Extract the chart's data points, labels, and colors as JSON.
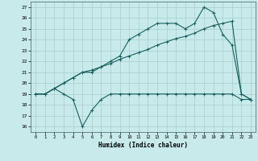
{
  "xlabel": "Humidex (Indice chaleur)",
  "ylabel": "",
  "bg_color": "#c8eaea",
  "grid_color": "#a8cccc",
  "line_color": "#1a6060",
  "xlim": [
    -0.5,
    23.5
  ],
  "ylim": [
    15.5,
    27.5
  ],
  "xticks": [
    0,
    1,
    2,
    3,
    4,
    5,
    6,
    7,
    8,
    9,
    10,
    11,
    12,
    13,
    14,
    15,
    16,
    17,
    18,
    19,
    20,
    21,
    22,
    23
  ],
  "yticks": [
    16,
    17,
    18,
    19,
    20,
    21,
    22,
    23,
    24,
    25,
    26,
    27
  ],
  "line1_x": [
    0,
    1,
    2,
    3,
    4,
    5,
    6,
    7,
    8,
    9,
    10,
    11,
    12,
    13,
    14,
    15,
    16,
    17,
    18,
    19,
    20,
    21,
    22,
    23
  ],
  "line1_y": [
    19,
    19,
    19.5,
    19,
    18.5,
    16,
    17.5,
    18.5,
    19,
    19,
    19,
    19,
    19,
    19,
    19,
    19,
    19,
    19,
    19,
    19,
    19,
    19,
    18.5,
    18.5
  ],
  "line2_x": [
    0,
    1,
    2,
    3,
    4,
    5,
    6,
    7,
    8,
    9,
    10,
    11,
    12,
    13,
    14,
    15,
    16,
    17,
    18,
    19,
    20,
    21,
    22,
    23
  ],
  "line2_y": [
    19,
    19,
    19.5,
    20,
    20.5,
    21,
    21,
    21.5,
    22,
    22.5,
    24,
    24.5,
    25,
    25.5,
    25.5,
    25.5,
    25,
    25.5,
    27,
    26.5,
    24.5,
    23.5,
    19,
    18.5
  ],
  "line3_x": [
    0,
    1,
    2,
    3,
    4,
    5,
    6,
    7,
    8,
    9,
    10,
    11,
    12,
    13,
    14,
    15,
    16,
    17,
    18,
    19,
    20,
    21,
    22,
    23
  ],
  "line3_y": [
    19,
    19,
    19.5,
    20,
    20.5,
    21,
    21.2,
    21.5,
    21.8,
    22.2,
    22.5,
    22.8,
    23.1,
    23.5,
    23.8,
    24.1,
    24.3,
    24.6,
    25,
    25.3,
    25.5,
    25.7,
    19,
    18.5
  ]
}
